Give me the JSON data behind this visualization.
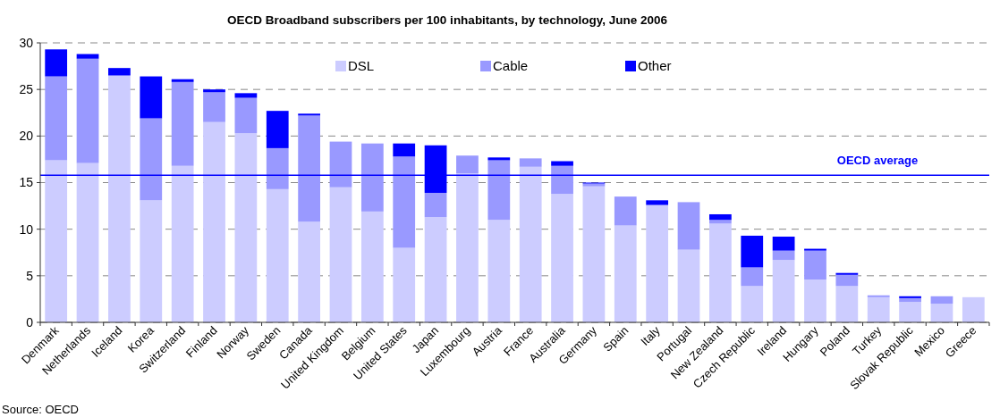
{
  "chart_data": {
    "type": "bar",
    "title": "OECD Broadband subscribers per 100 inhabitants, by technology, June 2006",
    "stacked": true,
    "categories": [
      "Denmark",
      "Netherlands",
      "Iceland",
      "Korea",
      "Switzerland",
      "Finland",
      "Norway",
      "Sweden",
      "Canada",
      "United Kingdom",
      "Belgium",
      "United States",
      "Japan",
      "Luxembourg",
      "Austria",
      "France",
      "Australia",
      "Germany",
      "Spain",
      "Italy",
      "Portugal",
      "New Zealand",
      "Czech Republic",
      "Ireland",
      "Hungary",
      "Poland",
      "Turkey",
      "Slovak Republic",
      "Mexico",
      "Greece"
    ],
    "series": [
      {
        "name": "DSL",
        "color": "#ccccff",
        "values": [
          17.4,
          17.1,
          26.5,
          13.1,
          16.8,
          21.5,
          20.3,
          14.3,
          10.8,
          14.5,
          11.9,
          8.0,
          11.3,
          16.0,
          11.0,
          16.7,
          13.8,
          14.6,
          10.4,
          12.6,
          7.8,
          10.6,
          3.9,
          6.7,
          4.6,
          3.9,
          2.7,
          2.2,
          2.0,
          2.7
        ]
      },
      {
        "name": "Cable",
        "color": "#9999ff",
        "values": [
          9.0,
          11.2,
          0,
          8.8,
          9.0,
          3.2,
          3.8,
          4.4,
          11.4,
          4.9,
          7.3,
          9.8,
          2.6,
          1.9,
          6.4,
          0.9,
          3.0,
          0.3,
          3.1,
          0,
          5.1,
          0.4,
          2.0,
          1.0,
          3.1,
          1.2,
          0.2,
          0.4,
          0.8,
          0
        ]
      },
      {
        "name": "Other",
        "color": "#0000ff",
        "values": [
          2.9,
          0.5,
          0.8,
          4.5,
          0.3,
          0.3,
          0.5,
          4.0,
          0.2,
          0,
          0,
          1.4,
          5.1,
          0,
          0.3,
          0,
          0.5,
          0.1,
          0,
          0.5,
          0,
          0.6,
          3.4,
          1.5,
          0.2,
          0.2,
          0,
          0.2,
          0,
          0
        ]
      }
    ],
    "ylim": [
      0,
      30
    ],
    "yticks": [
      0,
      5,
      10,
      15,
      20,
      25,
      30
    ],
    "grid": "y",
    "legend": "top",
    "ref_lines": [
      {
        "axis": "y",
        "value": 15.8,
        "label": "OECD average",
        "color": "#0000ff"
      }
    ],
    "annotations": [
      "Source: OECD"
    ]
  }
}
